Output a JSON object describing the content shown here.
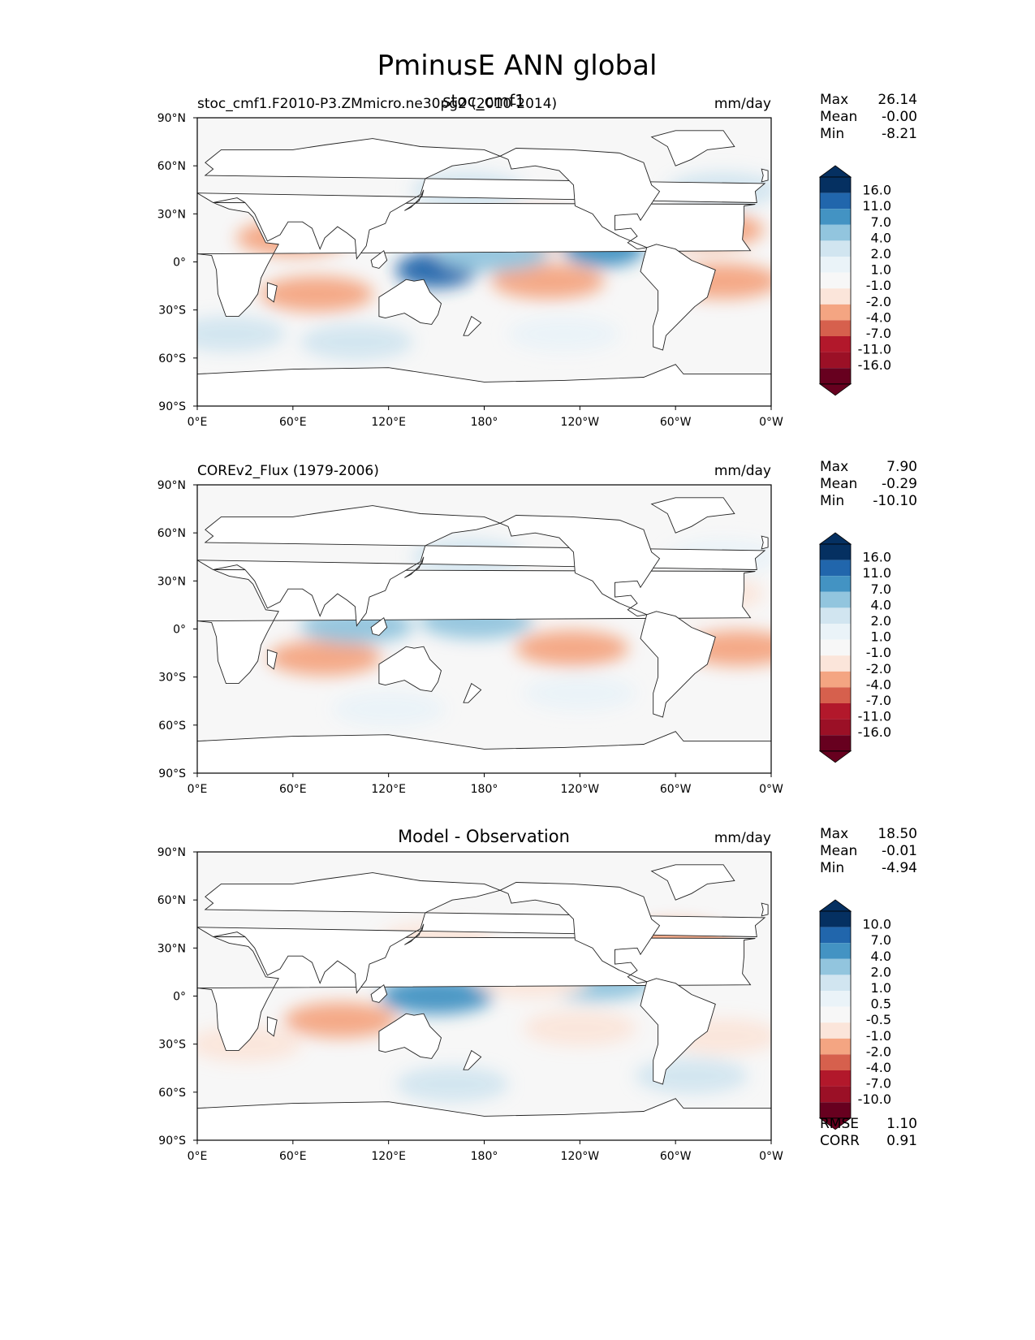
{
  "figure": {
    "title": "PminusE ANN global"
  },
  "chart_data": [
    {
      "type": "heatmap",
      "panel": "test",
      "overlay_title": "stoc_cmf1",
      "left_title": "stoc_cmf1.F2010-P3.ZMmicro.ne30pg2 (2010-2014)",
      "units": "mm/day",
      "stats": [
        {
          "label": "Max",
          "value": "26.14"
        },
        {
          "label": "Mean",
          "value": "-0.00"
        },
        {
          "label": "Min",
          "value": "-8.21"
        }
      ],
      "levels": [
        "16.0",
        "11.0",
        "7.0",
        "4.0",
        "2.0",
        "1.0",
        "-1.0",
        "-2.0",
        "-4.0",
        "-7.0",
        "-11.0",
        "-16.0"
      ],
      "xlim": [
        0,
        360
      ],
      "ylim": [
        -90,
        90
      ],
      "xticks": [
        "0°E",
        "60°E",
        "120°E",
        "180°",
        "120°W",
        "60°W",
        "0°W"
      ],
      "yticks": [
        "90°N",
        "60°N",
        "30°N",
        "0°",
        "30°S",
        "60°S",
        "90°S"
      ],
      "regions": [
        {
          "lon": 75,
          "lat": -20,
          "v": -4
        },
        {
          "lon": 220,
          "lat": -12,
          "v": -4
        },
        {
          "lon": 330,
          "lat": -12,
          "v": -4
        },
        {
          "lon": 210,
          "lat": 20,
          "v": -4
        },
        {
          "lon": 320,
          "lat": 20,
          "v": -4
        },
        {
          "lon": 60,
          "lat": 15,
          "v": -4
        },
        {
          "lon": 150,
          "lat": -5,
          "v": 11
        },
        {
          "lon": 255,
          "lat": 8,
          "v": 7
        },
        {
          "lon": 185,
          "lat": 5,
          "v": 4
        },
        {
          "lon": 170,
          "lat": 45,
          "v": 2
        },
        {
          "lon": 330,
          "lat": 45,
          "v": 2
        },
        {
          "lon": 100,
          "lat": -50,
          "v": 2
        },
        {
          "lon": 230,
          "lat": -45,
          "v": 1
        },
        {
          "lon": 20,
          "lat": -45,
          "v": 2
        }
      ]
    },
    {
      "type": "heatmap",
      "panel": "reference",
      "left_title": "COREv2_Flux (1979-2006)",
      "units": "mm/day",
      "stats": [
        {
          "label": "Max",
          "value": "7.90"
        },
        {
          "label": "Mean",
          "value": "-0.29"
        },
        {
          "label": "Min",
          "value": "-10.10"
        }
      ],
      "levels": [
        "16.0",
        "11.0",
        "7.0",
        "4.0",
        "2.0",
        "1.0",
        "-1.0",
        "-2.0",
        "-4.0",
        "-7.0",
        "-11.0",
        "-16.0"
      ],
      "xlim": [
        0,
        360
      ],
      "ylim": [
        -90,
        90
      ],
      "xticks": [
        "0°E",
        "60°E",
        "120°E",
        "180°",
        "120°W",
        "60°W",
        "0°W"
      ],
      "yticks": [
        "90°N",
        "60°N",
        "30°N",
        "0°",
        "30°S",
        "60°S",
        "90°S"
      ],
      "regions": [
        {
          "lon": 80,
          "lat": -18,
          "v": -4
        },
        {
          "lon": 235,
          "lat": -12,
          "v": -4
        },
        {
          "lon": 340,
          "lat": -12,
          "v": -4
        },
        {
          "lon": 200,
          "lat": 20,
          "v": -2
        },
        {
          "lon": 320,
          "lat": 22,
          "v": -2
        },
        {
          "lon": 100,
          "lat": 2,
          "v": 4
        },
        {
          "lon": 175,
          "lat": 5,
          "v": 4
        },
        {
          "lon": 170,
          "lat": 45,
          "v": 2
        },
        {
          "lon": 330,
          "lat": 45,
          "v": 1
        },
        {
          "lon": 120,
          "lat": -50,
          "v": 1
        },
        {
          "lon": 240,
          "lat": -40,
          "v": 1
        }
      ]
    },
    {
      "type": "heatmap",
      "panel": "difference",
      "center_title": "Model - Observation",
      "units": "mm/day",
      "stats": [
        {
          "label": "Max",
          "value": "18.50"
        },
        {
          "label": "Mean",
          "value": "-0.01"
        },
        {
          "label": "Min",
          "value": "-4.94"
        }
      ],
      "levels": [
        "10.0",
        "7.0",
        "4.0",
        "2.0",
        "1.0",
        "0.5",
        "-0.5",
        "-1.0",
        "-2.0",
        "-4.0",
        "-7.0",
        "-10.0"
      ],
      "metrics": [
        {
          "label": "RMSE",
          "value": "1.10"
        },
        {
          "label": "CORR",
          "value": "0.91"
        }
      ],
      "xlim": [
        0,
        360
      ],
      "ylim": [
        -90,
        90
      ],
      "xticks": [
        "0°E",
        "60°E",
        "120°E",
        "180°",
        "120°W",
        "60°W",
        "0°W"
      ],
      "yticks": [
        "90°N",
        "60°N",
        "30°N",
        "0°",
        "30°S",
        "60°S",
        "90°S"
      ],
      "regions": [
        {
          "lon": 90,
          "lat": -15,
          "v": -2
        },
        {
          "lon": 240,
          "lat": -20,
          "v": -1
        },
        {
          "lon": 330,
          "lat": -25,
          "v": -1
        },
        {
          "lon": 150,
          "lat": 0,
          "v": 4
        },
        {
          "lon": 250,
          "lat": 8,
          "v": 2
        },
        {
          "lon": 210,
          "lat": 10,
          "v": -1
        },
        {
          "lon": 150,
          "lat": 35,
          "v": -1
        },
        {
          "lon": 300,
          "lat": 35,
          "v": -2
        },
        {
          "lon": 160,
          "lat": -55,
          "v": 1
        },
        {
          "lon": 310,
          "lat": -50,
          "v": 1
        },
        {
          "lon": 30,
          "lat": -30,
          "v": -1
        }
      ]
    }
  ],
  "colors": {
    "blues": [
      "#053061",
      "#2166ac",
      "#4393c3",
      "#92c5de",
      "#d1e5f0",
      "#eaf3f8"
    ],
    "neutral": "#f7f7f7",
    "reds": [
      "#fbe5da",
      "#f4a582",
      "#d6604d",
      "#b2182b",
      "#9b1026",
      "#67001f"
    ]
  }
}
